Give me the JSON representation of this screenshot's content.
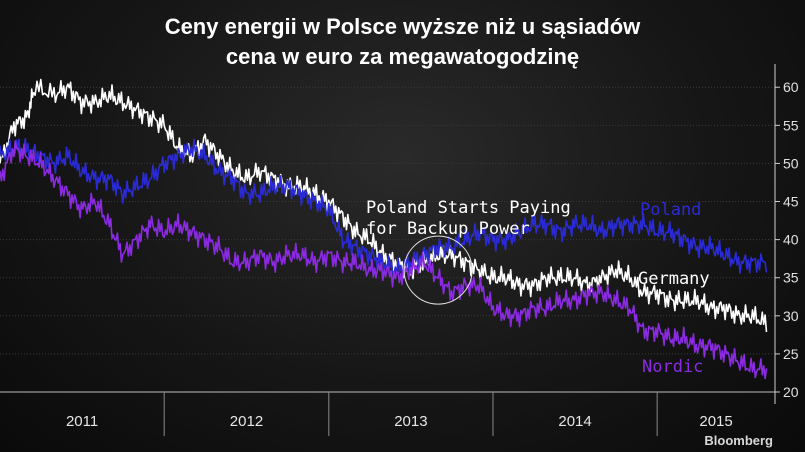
{
  "title_line1": "Ceny energii w Polsce wyższe niż u sąsiadów",
  "title_line2": "cena w euro za megawatogodzinę",
  "source": "Bloomberg",
  "chart_data": {
    "type": "line",
    "ylim": [
      20,
      62
    ],
    "yticks": [
      20,
      25,
      30,
      35,
      40,
      45,
      50,
      55,
      60
    ],
    "xlim": [
      "2011-01-01",
      "2015-09-20"
    ],
    "year_labels": [
      "2011",
      "2012",
      "2013",
      "2014",
      "2015"
    ],
    "grid": true,
    "annotation": {
      "text_line1": "Poland Starts Paying",
      "text_line2": "for Backup Power",
      "date": "2013-09-01",
      "value": 36
    },
    "series": [
      {
        "name": "Germany",
        "color": "#ffffff",
        "points": [
          [
            "2011-01-01",
            50
          ],
          [
            "2011-02-01",
            55
          ],
          [
            "2011-03-01",
            56
          ],
          [
            "2011-03-20",
            60
          ],
          [
            "2011-05-01",
            59
          ],
          [
            "2011-06-01",
            60
          ],
          [
            "2011-07-01",
            58
          ],
          [
            "2011-08-01",
            58
          ],
          [
            "2011-09-01",
            59
          ],
          [
            "2011-10-01",
            58
          ],
          [
            "2011-11-01",
            57
          ],
          [
            "2011-12-01",
            56
          ],
          [
            "2012-01-01",
            55
          ],
          [
            "2012-02-01",
            52
          ],
          [
            "2012-03-01",
            51
          ],
          [
            "2012-04-01",
            53
          ],
          [
            "2012-05-01",
            51
          ],
          [
            "2012-06-01",
            49
          ],
          [
            "2012-07-01",
            48
          ],
          [
            "2012-08-01",
            49
          ],
          [
            "2012-09-01",
            48
          ],
          [
            "2012-10-01",
            47
          ],
          [
            "2012-11-01",
            47
          ],
          [
            "2012-12-01",
            46
          ],
          [
            "2013-01-01",
            45
          ],
          [
            "2013-02-01",
            43
          ],
          [
            "2013-03-01",
            41
          ],
          [
            "2013-04-01",
            40
          ],
          [
            "2013-05-01",
            38
          ],
          [
            "2013-06-01",
            37
          ],
          [
            "2013-07-01",
            36
          ],
          [
            "2013-08-01",
            37
          ],
          [
            "2013-09-01",
            38
          ],
          [
            "2013-10-01",
            38
          ],
          [
            "2013-11-01",
            37
          ],
          [
            "2013-12-01",
            36
          ],
          [
            "2014-01-01",
            35
          ],
          [
            "2014-02-01",
            35
          ],
          [
            "2014-03-01",
            34
          ],
          [
            "2014-04-01",
            34
          ],
          [
            "2014-05-01",
            35
          ],
          [
            "2014-06-01",
            35
          ],
          [
            "2014-07-01",
            35
          ],
          [
            "2014-08-01",
            34
          ],
          [
            "2014-09-01",
            35
          ],
          [
            "2014-10-01",
            36
          ],
          [
            "2014-11-01",
            35
          ],
          [
            "2014-12-01",
            33
          ],
          [
            "2015-01-01",
            33
          ],
          [
            "2015-02-01",
            32
          ],
          [
            "2015-03-01",
            32
          ],
          [
            "2015-04-01",
            32
          ],
          [
            "2015-05-01",
            31
          ],
          [
            "2015-06-01",
            31
          ],
          [
            "2015-07-01",
            30
          ],
          [
            "2015-08-01",
            30
          ],
          [
            "2015-09-01",
            29
          ]
        ]
      },
      {
        "name": "Poland",
        "color": "#2b2bd6",
        "points": [
          [
            "2011-01-01",
            51
          ],
          [
            "2011-02-01",
            52
          ],
          [
            "2011-03-01",
            52
          ],
          [
            "2011-04-01",
            51
          ],
          [
            "2011-05-01",
            50
          ],
          [
            "2011-06-01",
            51
          ],
          [
            "2011-07-01",
            49
          ],
          [
            "2011-08-01",
            48
          ],
          [
            "2011-09-01",
            48
          ],
          [
            "2011-10-01",
            46
          ],
          [
            "2011-11-01",
            47
          ],
          [
            "2011-12-01",
            48
          ],
          [
            "2012-01-01",
            50
          ],
          [
            "2012-02-01",
            51
          ],
          [
            "2012-03-01",
            52
          ],
          [
            "2012-04-01",
            51
          ],
          [
            "2012-05-01",
            49
          ],
          [
            "2012-06-01",
            48
          ],
          [
            "2012-07-01",
            46
          ],
          [
            "2012-08-01",
            46
          ],
          [
            "2012-09-01",
            47
          ],
          [
            "2012-10-01",
            47
          ],
          [
            "2012-11-01",
            46
          ],
          [
            "2012-12-01",
            45
          ],
          [
            "2013-01-01",
            44
          ],
          [
            "2013-02-01",
            40
          ],
          [
            "2013-03-01",
            39
          ],
          [
            "2013-04-01",
            38
          ],
          [
            "2013-05-01",
            37
          ],
          [
            "2013-06-01",
            36
          ],
          [
            "2013-07-01",
            37
          ],
          [
            "2013-08-01",
            38
          ],
          [
            "2013-09-01",
            39
          ],
          [
            "2013-10-01",
            39
          ],
          [
            "2013-11-01",
            40
          ],
          [
            "2013-12-01",
            41
          ],
          [
            "2014-01-01",
            40
          ],
          [
            "2014-02-01",
            40
          ],
          [
            "2014-03-01",
            41
          ],
          [
            "2014-04-01",
            42
          ],
          [
            "2014-05-01",
            42
          ],
          [
            "2014-06-01",
            41
          ],
          [
            "2014-07-01",
            42
          ],
          [
            "2014-08-01",
            42
          ],
          [
            "2014-09-01",
            41
          ],
          [
            "2014-10-01",
            42
          ],
          [
            "2014-11-01",
            42
          ],
          [
            "2014-12-01",
            42
          ],
          [
            "2015-01-01",
            41
          ],
          [
            "2015-02-01",
            41
          ],
          [
            "2015-03-01",
            40
          ],
          [
            "2015-04-01",
            39
          ],
          [
            "2015-05-01",
            39
          ],
          [
            "2015-06-01",
            38
          ],
          [
            "2015-07-01",
            37
          ],
          [
            "2015-08-01",
            37
          ],
          [
            "2015-09-01",
            37
          ]
        ]
      },
      {
        "name": "Nordic",
        "color": "#8a2be2",
        "points": [
          [
            "2011-01-01",
            48
          ],
          [
            "2011-02-01",
            52
          ],
          [
            "2011-03-01",
            51
          ],
          [
            "2011-04-01",
            50
          ],
          [
            "2011-05-01",
            48
          ],
          [
            "2011-06-01",
            46
          ],
          [
            "2011-07-01",
            44
          ],
          [
            "2011-08-01",
            45
          ],
          [
            "2011-09-01",
            42
          ],
          [
            "2011-10-01",
            38
          ],
          [
            "2011-11-01",
            40
          ],
          [
            "2011-12-01",
            42
          ],
          [
            "2012-01-01",
            41
          ],
          [
            "2012-02-01",
            42
          ],
          [
            "2012-03-01",
            41
          ],
          [
            "2012-04-01",
            40
          ],
          [
            "2012-05-01",
            39
          ],
          [
            "2012-06-01",
            37
          ],
          [
            "2012-07-01",
            37
          ],
          [
            "2012-08-01",
            38
          ],
          [
            "2012-09-01",
            37
          ],
          [
            "2012-10-01",
            38
          ],
          [
            "2012-11-01",
            38
          ],
          [
            "2012-12-01",
            37
          ],
          [
            "2013-01-01",
            38
          ],
          [
            "2013-02-01",
            37
          ],
          [
            "2013-03-01",
            37
          ],
          [
            "2013-04-01",
            36
          ],
          [
            "2013-05-01",
            36
          ],
          [
            "2013-06-01",
            35
          ],
          [
            "2013-07-01",
            36
          ],
          [
            "2013-08-01",
            37
          ],
          [
            "2013-09-01",
            35
          ],
          [
            "2013-10-01",
            33
          ],
          [
            "2013-11-01",
            34
          ],
          [
            "2013-12-01",
            34
          ],
          [
            "2014-01-01",
            31
          ],
          [
            "2014-02-01",
            30
          ],
          [
            "2014-03-01",
            30
          ],
          [
            "2014-04-01",
            31
          ],
          [
            "2014-05-01",
            31
          ],
          [
            "2014-06-01",
            32
          ],
          [
            "2014-07-01",
            32
          ],
          [
            "2014-08-01",
            33
          ],
          [
            "2014-09-01",
            33
          ],
          [
            "2014-10-01",
            32
          ],
          [
            "2014-11-01",
            31
          ],
          [
            "2014-12-01",
            28
          ],
          [
            "2015-01-01",
            28
          ],
          [
            "2015-02-01",
            27
          ],
          [
            "2015-03-01",
            27
          ],
          [
            "2015-04-01",
            26
          ],
          [
            "2015-05-01",
            26
          ],
          [
            "2015-06-01",
            25
          ],
          [
            "2015-07-01",
            24
          ],
          [
            "2015-08-01",
            23
          ],
          [
            "2015-09-01",
            23
          ]
        ]
      }
    ]
  }
}
